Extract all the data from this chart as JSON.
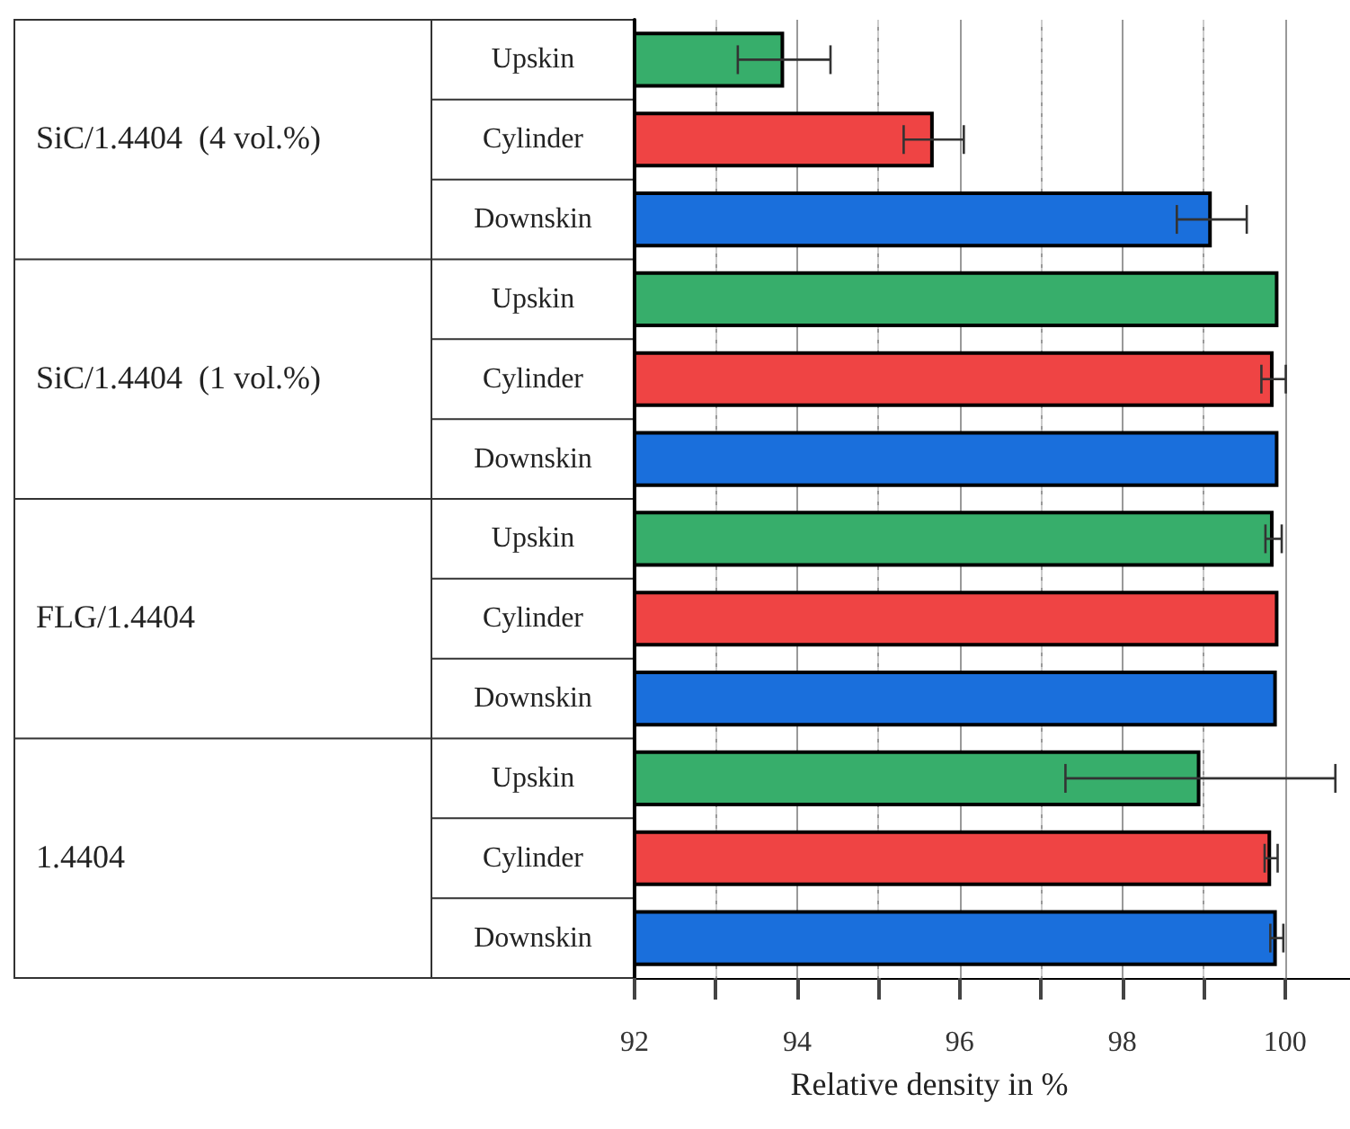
{
  "chart_data": {
    "type": "bar",
    "orientation": "horizontal",
    "categories": [
      "Upskin",
      "Cylinder",
      "Downskin",
      "Upskin",
      "Cylinder",
      "Downskin",
      "Upskin",
      "Cylinder",
      "Downskin",
      "Upskin",
      "Cylinder",
      "Downskin"
    ],
    "values": [
      93.84,
      95.68,
      99.1,
      99.92,
      99.86,
      99.92,
      99.86,
      99.92,
      99.9,
      98.96,
      99.83,
      99.9
    ],
    "errors": [
      0.57,
      0.37,
      0.43,
      null,
      0.15,
      null,
      0.1,
      null,
      null,
      1.66,
      0.08,
      0.08
    ],
    "colors": [
      "#37ae6b",
      "#ef4444",
      "#1a6fdc",
      "#37ae6b",
      "#ef4444",
      "#1a6fdc",
      "#37ae6b",
      "#ef4444",
      "#1a6fdc",
      "#37ae6b",
      "#ef4444",
      "#1a6fdc"
    ],
    "annotations": [
      "SiC/1.4404  (4 vol.%)",
      "SiC/1.4404  (1 vol.%)",
      "FLG/1.4404",
      "1.4404"
    ],
    "xlabel": "Relative density in %",
    "xlim": [
      92,
      100.8
    ],
    "xticks": [
      92,
      {
        "value": 93,
        "label": null
      },
      94,
      {
        "value": 95,
        "label": null
      },
      96,
      {
        "value": 97,
        "label": null
      },
      98,
      {
        "value": 99,
        "label": null
      },
      100
    ],
    "grid": "x"
  }
}
